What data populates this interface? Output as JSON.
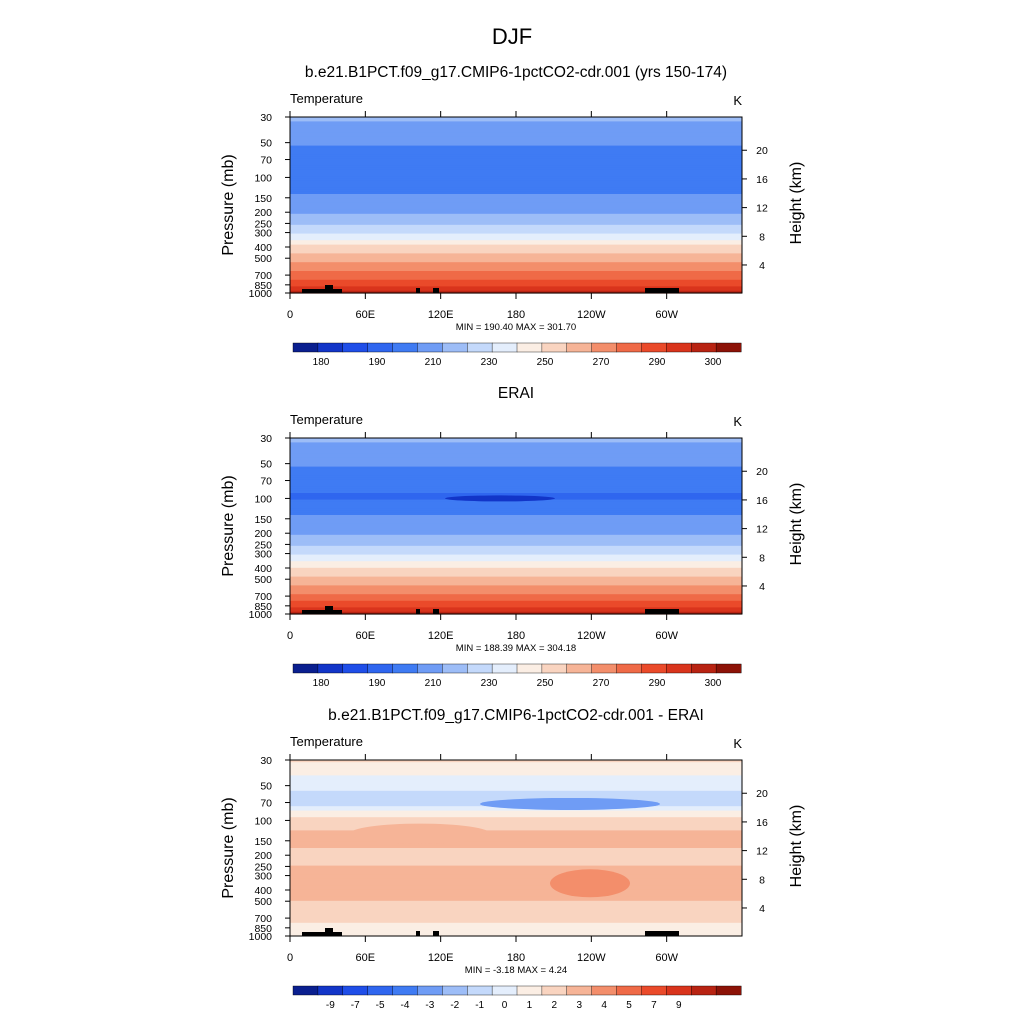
{
  "figure": {
    "title": "DJF"
  },
  "colors": {
    "abs_palette": [
      "#0a1f8f",
      "#1235c8",
      "#1f4ee8",
      "#2f66ef",
      "#3f7bf3",
      "#6f9cf5",
      "#9dbdf7",
      "#c4d9fb",
      "#e4eefc",
      "#fbeee4",
      "#f9d4c0",
      "#f6b497",
      "#f38e6b",
      "#ef6a47",
      "#ea4a2a",
      "#d9341c",
      "#b82312",
      "#8c1207"
    ],
    "diff_palette": [
      "#0a1f8f",
      "#1235c8",
      "#1f4ee8",
      "#2f66ef",
      "#3f7bf3",
      "#6f9cf5",
      "#9dbdf7",
      "#c4d9fb",
      "#e4eefc",
      "#fbeee4",
      "#f9d4c0",
      "#f6b497",
      "#f38e6b",
      "#ef6a47",
      "#ea4a2a",
      "#d9341c",
      "#b82312",
      "#8c1207"
    ]
  },
  "chart_data": [
    {
      "type": "heatmap",
      "panel_title": "b.e21.B1PCT.f09_g17.CMIP6-1pctCO2-cdr.001 (yrs 150-174)",
      "variable_label": "Temperature",
      "units": "K",
      "ylabel": "Pressure (mb)",
      "y2label": "Height (km)",
      "x_ticks": [
        "0",
        "60E",
        "120E",
        "180",
        "120W",
        "60W"
      ],
      "x_range": [
        0,
        360
      ],
      "y_ticks": [
        "30",
        "50",
        "70",
        "100",
        "150",
        "200",
        "250",
        "300",
        "400",
        "500",
        "700",
        "850",
        "1000"
      ],
      "y_range_mb": [
        30,
        1000
      ],
      "y2_ticks": [
        "4",
        "8",
        "12",
        "16",
        "20"
      ],
      "stats": "MIN = 190.40  MAX = 301.70",
      "colorbar_labels": [
        "180",
        "190",
        "210",
        "230",
        "250",
        "270",
        "290",
        "300"
      ],
      "profile_by_level_mb": [
        {
          "p": 30,
          "value": 220
        },
        {
          "p": 50,
          "value": 212
        },
        {
          "p": 70,
          "value": 206
        },
        {
          "p": 100,
          "value": 204
        },
        {
          "p": 150,
          "value": 213
        },
        {
          "p": 200,
          "value": 218
        },
        {
          "p": 250,
          "value": 224
        },
        {
          "p": 300,
          "value": 232
        },
        {
          "p": 400,
          "value": 249
        },
        {
          "p": 500,
          "value": 258
        },
        {
          "p": 700,
          "value": 272
        },
        {
          "p": 850,
          "value": 282
        },
        {
          "p": 1000,
          "value": 292
        }
      ]
    },
    {
      "type": "heatmap",
      "panel_title": "ERAI",
      "variable_label": "Temperature",
      "units": "K",
      "ylabel": "Pressure (mb)",
      "y2label": "Height (km)",
      "x_ticks": [
        "0",
        "60E",
        "120E",
        "180",
        "120W",
        "60W"
      ],
      "x_range": [
        0,
        360
      ],
      "y_ticks": [
        "30",
        "50",
        "70",
        "100",
        "150",
        "200",
        "250",
        "300",
        "400",
        "500",
        "700",
        "850",
        "1000"
      ],
      "y_range_mb": [
        30,
        1000
      ],
      "y2_ticks": [
        "4",
        "8",
        "12",
        "16",
        "20"
      ],
      "stats": "MIN = 188.39  MAX = 304.18",
      "colorbar_labels": [
        "180",
        "190",
        "210",
        "230",
        "250",
        "270",
        "290",
        "300"
      ],
      "profile_by_level_mb": [
        {
          "p": 30,
          "value": 220
        },
        {
          "p": 50,
          "value": 212
        },
        {
          "p": 70,
          "value": 206
        },
        {
          "p": 100,
          "value": 203
        },
        {
          "p": 150,
          "value": 213
        },
        {
          "p": 200,
          "value": 218
        },
        {
          "p": 250,
          "value": 224
        },
        {
          "p": 300,
          "value": 231
        },
        {
          "p": 400,
          "value": 248
        },
        {
          "p": 500,
          "value": 257
        },
        {
          "p": 700,
          "value": 271
        },
        {
          "p": 850,
          "value": 282
        },
        {
          "p": 1000,
          "value": 293
        }
      ]
    },
    {
      "type": "heatmap",
      "panel_title": "b.e21.B1PCT.f09_g17.CMIP6-1pctCO2-cdr.001 - ERAI",
      "variable_label": "Temperature",
      "units": "K",
      "ylabel": "Pressure (mb)",
      "y2label": "Height (km)",
      "x_ticks": [
        "0",
        "60E",
        "120E",
        "180",
        "120W",
        "60W"
      ],
      "x_range": [
        0,
        360
      ],
      "y_ticks": [
        "30",
        "50",
        "70",
        "100",
        "150",
        "200",
        "250",
        "300",
        "400",
        "500",
        "700",
        "850",
        "1000"
      ],
      "y_range_mb": [
        30,
        1000
      ],
      "y2_ticks": [
        "4",
        "8",
        "12",
        "16",
        "20"
      ],
      "stats": "MIN =  -3.18  MAX =   4.24",
      "colorbar_labels": [
        "-9",
        "-7",
        "-5",
        "-4",
        "-3",
        "-2",
        "-1",
        "0",
        "1",
        "2",
        "3",
        "4",
        "5",
        "7",
        "9"
      ],
      "profile_by_level_mb": [
        {
          "p": 30,
          "value": 0.6
        },
        {
          "p": 50,
          "value": -0.4
        },
        {
          "p": 70,
          "value": -0.8
        },
        {
          "p": 100,
          "value": 0.8
        },
        {
          "p": 150,
          "value": 1.2
        },
        {
          "p": 200,
          "value": 0.8
        },
        {
          "p": 250,
          "value": 1.0
        },
        {
          "p": 300,
          "value": 1.4
        },
        {
          "p": 400,
          "value": 1.3
        },
        {
          "p": 500,
          "value": 1.0
        },
        {
          "p": 700,
          "value": 0.6
        },
        {
          "p": 850,
          "value": 0.4
        },
        {
          "p": 1000,
          "value": 0.5
        }
      ]
    }
  ]
}
